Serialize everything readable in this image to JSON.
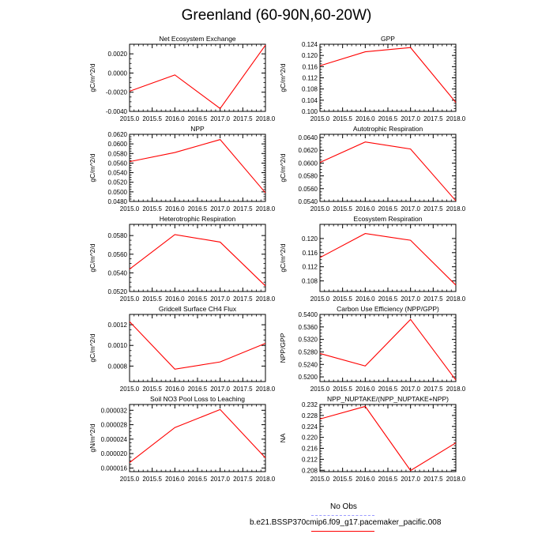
{
  "title": "Greenland (60-90N,60-20W)",
  "colors": {
    "model": "#ff0000",
    "obs": "#9a9aff",
    "axis": "#000000"
  },
  "legend": {
    "obs_label": "No Obs",
    "model_label": "b.e21.BSSP370cmip6.f09_g17.pacemaker_pacific.008"
  },
  "chart_data": [
    {
      "type": "line",
      "title": "Net Ecosystem Exchange",
      "ylabel": "gC/m^2/d",
      "x": [
        2015,
        2016,
        2017,
        2018
      ],
      "y": [
        -0.0019,
        -0.0002,
        -0.0037,
        0.0029
      ],
      "xlim": [
        2015,
        2018
      ],
      "ylim": [
        -0.004,
        0.003
      ],
      "yticks": [
        -0.004,
        -0.002,
        0.0,
        0.002
      ],
      "ytick_labels": [
        "-0.0040",
        "-0.0020",
        "0.0000",
        "0.0020"
      ],
      "xticks": [
        2015,
        2015.5,
        2016,
        2016.5,
        2017,
        2017.5,
        2018
      ],
      "xtick_labels": [
        "2015.0",
        "2015.5",
        "2016.0",
        "2016.5",
        "2017.0",
        "2017.5",
        "2018.0"
      ]
    },
    {
      "type": "line",
      "title": "GPP",
      "ylabel": "gC/m^2/d",
      "x": [
        2015,
        2016,
        2017,
        2018
      ],
      "y": [
        0.1163,
        0.1213,
        0.1228,
        0.1032
      ],
      "xlim": [
        2015,
        2018
      ],
      "ylim": [
        0.1,
        0.124
      ],
      "yticks": [
        0.1,
        0.104,
        0.108,
        0.112,
        0.116,
        0.12,
        0.124
      ],
      "ytick_labels": [
        "0.100",
        "0.104",
        "0.108",
        "0.112",
        "0.116",
        "0.120",
        "0.124"
      ],
      "xticks": [
        2015,
        2015.5,
        2016,
        2016.5,
        2017,
        2017.5,
        2018
      ],
      "xtick_labels": [
        "2015.0",
        "2015.5",
        "2016.0",
        "2016.5",
        "2017.0",
        "2017.5",
        "2018.0"
      ]
    },
    {
      "type": "line",
      "title": "NPP",
      "ylabel": "gC/m^2/d",
      "x": [
        2015,
        2016,
        2017,
        2018
      ],
      "y": [
        0.0563,
        0.0582,
        0.0609,
        0.0498
      ],
      "xlim": [
        2015,
        2018
      ],
      "ylim": [
        0.048,
        0.062
      ],
      "yticks": [
        0.048,
        0.05,
        0.052,
        0.054,
        0.056,
        0.058,
        0.06,
        0.062
      ],
      "ytick_labels": [
        "0.0480",
        "0.0500",
        "0.0520",
        "0.0540",
        "0.0560",
        "0.0580",
        "0.0600",
        "0.0620"
      ],
      "xticks": [
        2015,
        2015.5,
        2016,
        2016.5,
        2017,
        2017.5,
        2018
      ],
      "xtick_labels": [
        "2015.0",
        "2015.5",
        "2016.0",
        "2016.5",
        "2017.0",
        "2017.5",
        "2018.0"
      ]
    },
    {
      "type": "line",
      "title": "Autotrophic Respiration",
      "ylabel": "gC/m^2/d",
      "x": [
        2015,
        2016,
        2017,
        2018
      ],
      "y": [
        0.0601,
        0.0633,
        0.0622,
        0.0541
      ],
      "xlim": [
        2015,
        2018
      ],
      "ylim": [
        0.054,
        0.0645
      ],
      "yticks": [
        0.054,
        0.056,
        0.058,
        0.06,
        0.062,
        0.064
      ],
      "ytick_labels": [
        "0.0540",
        "0.0560",
        "0.0580",
        "0.0600",
        "0.0620",
        "0.0640"
      ],
      "xticks": [
        2015,
        2015.5,
        2016,
        2016.5,
        2017,
        2017.5,
        2018
      ],
      "xtick_labels": [
        "2015.0",
        "2015.5",
        "2016.0",
        "2016.5",
        "2017.0",
        "2017.5",
        "2018.0"
      ]
    },
    {
      "type": "line",
      "title": "Heterotrophic Respiration",
      "ylabel": "gC/m^2/d",
      "x": [
        2015,
        2016,
        2017,
        2018
      ],
      "y": [
        0.0544,
        0.0581,
        0.0573,
        0.0526
      ],
      "xlim": [
        2015,
        2018
      ],
      "ylim": [
        0.052,
        0.0592
      ],
      "yticks": [
        0.052,
        0.054,
        0.056,
        0.058
      ],
      "ytick_labels": [
        "0.0520",
        "0.0540",
        "0.0560",
        "0.0580"
      ],
      "xticks": [
        2015,
        2015.5,
        2016,
        2016.5,
        2017,
        2017.5,
        2018
      ],
      "xtick_labels": [
        "2015.0",
        "2015.5",
        "2016.0",
        "2016.5",
        "2017.0",
        "2017.5",
        "2018.0"
      ]
    },
    {
      "type": "line",
      "title": "Ecosystem Respiration",
      "ylabel": "gC/m^2/d",
      "x": [
        2015,
        2016,
        2017,
        2018
      ],
      "y": [
        0.1146,
        0.1214,
        0.1195,
        0.1068
      ],
      "xlim": [
        2015,
        2018
      ],
      "ylim": [
        0.105,
        0.124
      ],
      "yticks": [
        0.108,
        0.112,
        0.116,
        0.12
      ],
      "ytick_labels": [
        "0.108",
        "0.112",
        "0.116",
        "0.120"
      ],
      "xticks": [
        2015,
        2015.5,
        2016,
        2016.5,
        2017,
        2017.5,
        2018
      ],
      "xtick_labels": [
        "2015.0",
        "2015.5",
        "2016.0",
        "2016.5",
        "2017.0",
        "2017.5",
        "2018.0"
      ]
    },
    {
      "type": "line",
      "title": "Gridcell Surface CH4 Flux",
      "ylabel": "gC/m^2/d",
      "x": [
        2015,
        2016,
        2017,
        2018
      ],
      "y": [
        0.00123,
        0.00077,
        0.00084,
        0.00102
      ],
      "xlim": [
        2015,
        2018
      ],
      "ylim": [
        0.00065,
        0.0013
      ],
      "yticks": [
        0.0008,
        0.001,
        0.0012
      ],
      "ytick_labels": [
        "0.0008",
        "0.0010",
        "0.0012"
      ],
      "xticks": [
        2015,
        2015.5,
        2016,
        2016.5,
        2017,
        2017.5,
        2018
      ],
      "xtick_labels": [
        "2015.0",
        "2015.5",
        "2016.0",
        "2016.5",
        "2017.0",
        "2017.5",
        "2018.0"
      ]
    },
    {
      "type": "line",
      "title": "Carbon Use Efficiency (NPP/GPP)",
      "ylabel": "NPP/GPP",
      "x": [
        2015,
        2016,
        2017,
        2018
      ],
      "y": [
        0.5275,
        0.5235,
        0.5384,
        0.519
      ],
      "xlim": [
        2015,
        2018
      ],
      "ylim": [
        0.5185,
        0.54
      ],
      "yticks": [
        0.52,
        0.524,
        0.528,
        0.532,
        0.536,
        0.54
      ],
      "ytick_labels": [
        "0.5200",
        "0.5240",
        "0.5280",
        "0.5320",
        "0.5360",
        "0.5400"
      ],
      "xticks": [
        2015,
        2015.5,
        2016,
        2016.5,
        2017,
        2017.5,
        2018
      ],
      "xtick_labels": [
        "2015.0",
        "2015.5",
        "2016.0",
        "2016.5",
        "2017.0",
        "2017.5",
        "2018.0"
      ]
    },
    {
      "type": "line",
      "title": "Soil NO3 Pool Loss to Leaching",
      "ylabel": "gN/m^2/d",
      "x": [
        2015,
        2016,
        2017,
        2018
      ],
      "y": [
        1.75e-05,
        2.72e-05,
        3.22e-05,
        1.88e-05
      ],
      "xlim": [
        2015,
        2018
      ],
      "ylim": [
        1.5e-05,
        3.36e-05
      ],
      "yticks": [
        1.6e-05,
        2e-05,
        2.4e-05,
        2.8e-05,
        3.2e-05
      ],
      "ytick_labels": [
        "0.000016",
        "0.000020",
        "0.000024",
        "0.000028",
        "0.000032"
      ],
      "xticks": [
        2015,
        2015.5,
        2016,
        2016.5,
        2017,
        2017.5,
        2018
      ],
      "xtick_labels": [
        "2015.0",
        "2015.5",
        "2016.0",
        "2016.5",
        "2017.0",
        "2017.5",
        "2018.0"
      ]
    },
    {
      "type": "line",
      "title": "NPP_NUPTAKE/(NPP_NUPTAKE+NPP)",
      "ylabel": "NA",
      "x": [
        2015,
        2016,
        2017,
        2018
      ],
      "y": [
        0.2267,
        0.2313,
        0.2079,
        0.218
      ],
      "xlim": [
        2015,
        2018
      ],
      "ylim": [
        0.2075,
        0.232
      ],
      "yticks": [
        0.208,
        0.212,
        0.216,
        0.22,
        0.224,
        0.228,
        0.232
      ],
      "ytick_labels": [
        "0.208",
        "0.212",
        "0.216",
        "0.220",
        "0.224",
        "0.228",
        "0.232"
      ],
      "xticks": [
        2015,
        2015.5,
        2016,
        2016.5,
        2017,
        2017.5,
        2018
      ],
      "xtick_labels": [
        "2015.0",
        "2015.5",
        "2016.0",
        "2016.5",
        "2017.0",
        "2017.5",
        "2018.0"
      ]
    }
  ]
}
